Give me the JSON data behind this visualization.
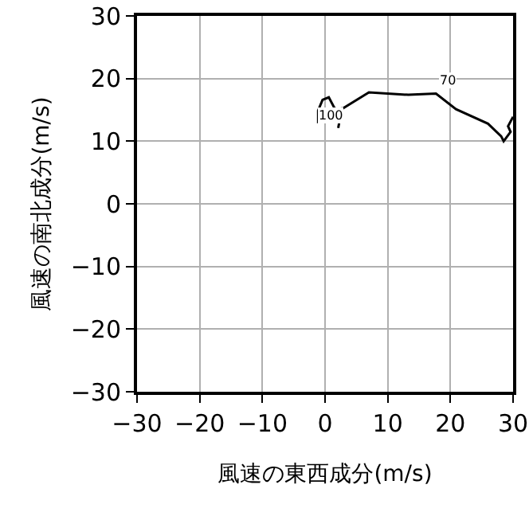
{
  "chart_data": {
    "type": "line",
    "xlabel": "風速の東西成分(m/s)",
    "ylabel": "風速の南北成分(m/s)",
    "x": [
      30.0,
      29.2,
      29.6,
      28.5,
      28.1,
      26.0,
      20.9,
      17.7,
      13.3,
      7.0,
      2.3,
      1.5,
      0.6,
      -0.4,
      -1.1,
      -1.1,
      1.0,
      2.7,
      2.1
    ],
    "series": [
      {
        "color": "#000000",
        "values": [
          13.9,
          12.4,
          11.5,
          10.0,
          10.8,
          12.8,
          15.1,
          17.6,
          17.4,
          17.8,
          14.9,
          15.3,
          17.0,
          16.6,
          14.9,
          13.1,
          13.9,
          15.3,
          12.1
        ]
      }
    ],
    "annotations": [
      "70",
      "100"
    ],
    "xlim": [
      -30,
      30
    ],
    "ylim": [
      -30,
      30
    ],
    "xticks": [
      -30,
      -20,
      -10,
      0,
      10,
      20,
      30
    ],
    "yticks": [
      -30,
      -20,
      -10,
      0,
      10,
      20,
      30
    ],
    "grid": true,
    "marker": "none",
    "line_style": "solid"
  }
}
